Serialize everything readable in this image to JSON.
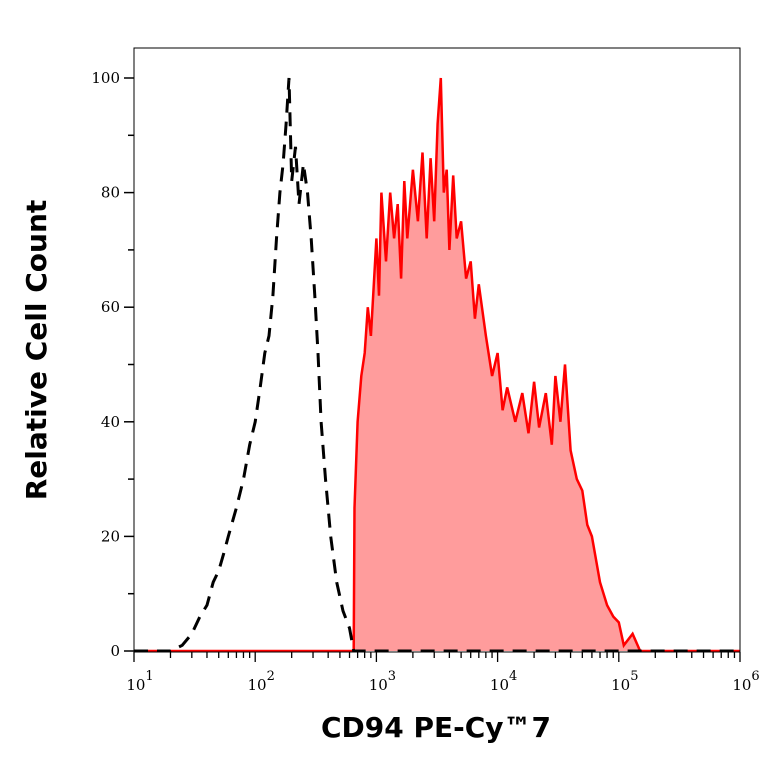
{
  "chart_data": {
    "type": "area",
    "title": "",
    "xlabel": "CD94 PE-Cy™7",
    "ylabel": "Relative Cell Count",
    "xscale": "log",
    "xlim": [
      10,
      1000000
    ],
    "ylim": [
      0,
      105
    ],
    "x_ticks": [
      10,
      100,
      1000,
      10000,
      100000,
      1000000
    ],
    "x_tick_labels": [
      {
        "base": "10",
        "exp": "1"
      },
      {
        "base": "10",
        "exp": "2"
      },
      {
        "base": "10",
        "exp": "3"
      },
      {
        "base": "10",
        "exp": "4"
      },
      {
        "base": "10",
        "exp": "5"
      },
      {
        "base": "10",
        "exp": "6"
      }
    ],
    "y_ticks": [
      0,
      20,
      40,
      60,
      80,
      100
    ],
    "y_tick_labels": [
      "0",
      "20",
      "40",
      "60",
      "80",
      "100"
    ],
    "grid": false,
    "series": [
      {
        "style": "dashed-line",
        "color": "#000000",
        "x": [
          10,
          20,
          25,
          30,
          35,
          40,
          45,
          50,
          55,
          60,
          70,
          80,
          90,
          100,
          110,
          120,
          130,
          140,
          150,
          160,
          170,
          180,
          190,
          200,
          215,
          230,
          250,
          270,
          290,
          310,
          330,
          350,
          380,
          420,
          470,
          530,
          600,
          650,
          1000000
        ],
        "y": [
          0,
          0,
          1,
          3,
          6,
          8,
          12,
          14,
          17,
          20,
          25,
          30,
          36,
          40,
          46,
          52,
          55,
          62,
          72,
          80,
          85,
          92,
          100,
          82,
          88,
          78,
          85,
          80,
          72,
          62,
          52,
          40,
          30,
          20,
          12,
          7,
          4,
          0,
          0
        ]
      },
      {
        "style": "filled",
        "color": "#ff0000",
        "fill": "#ff9c9c",
        "x": [
          10,
          650,
          660,
          700,
          750,
          800,
          850,
          900,
          1000,
          1050,
          1100,
          1200,
          1300,
          1400,
          1500,
          1600,
          1700,
          1800,
          2000,
          2200,
          2400,
          2600,
          2800,
          3000,
          3200,
          3400,
          3600,
          3800,
          4000,
          4300,
          4600,
          5000,
          5500,
          6000,
          6500,
          7000,
          8000,
          9000,
          10000,
          11000,
          12000,
          14000,
          16000,
          18000,
          20000,
          22000,
          25000,
          28000,
          30000,
          33000,
          36000,
          40000,
          45000,
          50000,
          55000,
          60000,
          70000,
          80000,
          90000,
          100000,
          110000,
          130000,
          150000,
          1000000
        ],
        "y": [
          0,
          0,
          25,
          40,
          48,
          52,
          60,
          55,
          72,
          62,
          80,
          68,
          80,
          72,
          78,
          65,
          82,
          72,
          84,
          75,
          87,
          72,
          86,
          75,
          92,
          100,
          80,
          84,
          70,
          83,
          72,
          75,
          65,
          68,
          58,
          64,
          55,
          48,
          52,
          42,
          46,
          40,
          45,
          38,
          47,
          39,
          45,
          36,
          48,
          40,
          50,
          35,
          30,
          28,
          22,
          20,
          12,
          8,
          6,
          5,
          1,
          3,
          0,
          0
        ]
      }
    ]
  }
}
